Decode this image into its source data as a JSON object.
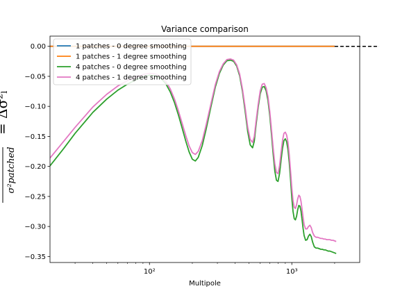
{
  "chart_data": {
    "type": "line",
    "title": "Variance comparison",
    "xlabel": "Multipole",
    "ylabel_numerator": "Δσ²",
    "ylabel_denominator": "σ²patched",
    "ylabel_equals": "= Δσ²ₗ",
    "xscale": "log",
    "xlim": [
      20,
      3000
    ],
    "ylim": [
      -0.36,
      0.017
    ],
    "x_ticks": [
      {
        "value": 100,
        "label": "10²"
      },
      {
        "value": 1000,
        "label": "10³"
      }
    ],
    "y_ticks": [
      0.0,
      -0.05,
      -0.1,
      -0.15,
      -0.2,
      -0.25,
      -0.3,
      -0.35
    ],
    "y_tick_labels": [
      "0.00",
      "−0.05",
      "−0.10",
      "−0.15",
      "−0.20",
      "−0.25",
      "−0.30",
      "−0.35"
    ],
    "legend_position": "upper-left",
    "reference_line": {
      "y": 0.0,
      "style": "dashed",
      "color": "#000000"
    },
    "series": [
      {
        "name": "1 patches - 0 degree smoothing",
        "color": "#1f77b4",
        "x": [
          20,
          50,
          100,
          200,
          500,
          1000,
          2000
        ],
        "y": [
          0.0,
          0.0,
          0.0,
          0.0,
          0.0,
          0.0,
          0.0
        ]
      },
      {
        "name": "1 patches - 1 degree smoothing",
        "color": "#ff7f0e",
        "x": [
          20,
          50,
          100,
          200,
          500,
          1000,
          2000
        ],
        "y": [
          0.0,
          0.0,
          0.0,
          0.0,
          0.0,
          0.0,
          0.0
        ]
      },
      {
        "name": "4 patches - 0 degree smoothing",
        "color": "#2ca02c",
        "x": [
          20,
          25,
          30,
          40,
          50,
          60,
          70,
          80,
          90,
          100,
          110,
          120,
          130,
          140,
          150,
          160,
          170,
          180,
          190,
          200,
          210,
          220,
          235,
          250,
          270,
          290,
          310,
          330,
          350,
          370,
          390,
          410,
          430,
          450,
          470,
          490,
          510,
          530,
          545,
          560,
          580,
          600,
          620,
          640,
          660,
          680,
          700,
          720,
          740,
          760,
          780,
          800,
          820,
          840,
          860,
          880,
          900,
          920,
          940,
          960,
          980,
          1000,
          1020,
          1040,
          1060,
          1080,
          1100,
          1120,
          1140,
          1160,
          1180,
          1200,
          1220,
          1250,
          1280,
          1310,
          1340,
          1370,
          1400,
          1440,
          1480,
          1520,
          1560,
          1600,
          1640,
          1680,
          1720,
          1760,
          1800,
          1850,
          1900,
          1950,
          2000,
          2050
        ],
        "y": [
          -0.199,
          -0.17,
          -0.145,
          -0.11,
          -0.088,
          -0.073,
          -0.063,
          -0.056,
          -0.051,
          -0.048,
          -0.049,
          -0.053,
          -0.062,
          -0.076,
          -0.094,
          -0.115,
          -0.137,
          -0.158,
          -0.176,
          -0.188,
          -0.191,
          -0.185,
          -0.165,
          -0.138,
          -0.101,
          -0.068,
          -0.045,
          -0.031,
          -0.024,
          -0.023,
          -0.025,
          -0.033,
          -0.049,
          -0.075,
          -0.108,
          -0.142,
          -0.164,
          -0.169,
          -0.158,
          -0.132,
          -0.102,
          -0.079,
          -0.068,
          -0.067,
          -0.074,
          -0.09,
          -0.115,
          -0.147,
          -0.18,
          -0.208,
          -0.223,
          -0.225,
          -0.212,
          -0.19,
          -0.17,
          -0.157,
          -0.154,
          -0.159,
          -0.172,
          -0.194,
          -0.222,
          -0.252,
          -0.275,
          -0.287,
          -0.289,
          -0.283,
          -0.272,
          -0.265,
          -0.266,
          -0.274,
          -0.288,
          -0.303,
          -0.315,
          -0.323,
          -0.322,
          -0.316,
          -0.313,
          -0.317,
          -0.326,
          -0.334,
          -0.336,
          -0.336,
          -0.337,
          -0.338,
          -0.338,
          -0.339,
          -0.339,
          -0.34,
          -0.341,
          -0.341,
          -0.342,
          -0.343,
          -0.344,
          -0.345
        ]
      },
      {
        "name": "4 patches - 1 degree smoothing",
        "color": "#e377c2",
        "x": [
          20,
          25,
          30,
          40,
          50,
          60,
          70,
          80,
          90,
          100,
          110,
          120,
          130,
          140,
          150,
          160,
          170,
          180,
          190,
          200,
          210,
          220,
          235,
          250,
          270,
          290,
          310,
          330,
          350,
          370,
          390,
          410,
          430,
          450,
          470,
          490,
          510,
          530,
          545,
          560,
          580,
          600,
          620,
          640,
          660,
          680,
          700,
          720,
          740,
          760,
          780,
          800,
          820,
          840,
          860,
          880,
          900,
          920,
          940,
          960,
          980,
          1000,
          1020,
          1040,
          1060,
          1080,
          1100,
          1120,
          1140,
          1160,
          1180,
          1200,
          1220,
          1250,
          1280,
          1310,
          1340,
          1370,
          1400,
          1440,
          1480,
          1520,
          1560,
          1600,
          1640,
          1680,
          1720,
          1760,
          1800,
          1850,
          1900,
          1950,
          2000,
          2050
        ],
        "y": [
          -0.186,
          -0.158,
          -0.135,
          -0.101,
          -0.08,
          -0.066,
          -0.057,
          -0.051,
          -0.047,
          -0.045,
          -0.046,
          -0.05,
          -0.058,
          -0.071,
          -0.088,
          -0.108,
          -0.129,
          -0.149,
          -0.166,
          -0.177,
          -0.18,
          -0.175,
          -0.157,
          -0.131,
          -0.096,
          -0.064,
          -0.042,
          -0.029,
          -0.022,
          -0.021,
          -0.023,
          -0.031,
          -0.046,
          -0.071,
          -0.102,
          -0.135,
          -0.155,
          -0.16,
          -0.15,
          -0.126,
          -0.097,
          -0.074,
          -0.063,
          -0.062,
          -0.069,
          -0.084,
          -0.108,
          -0.139,
          -0.17,
          -0.196,
          -0.21,
          -0.212,
          -0.199,
          -0.177,
          -0.157,
          -0.145,
          -0.143,
          -0.148,
          -0.16,
          -0.181,
          -0.208,
          -0.236,
          -0.257,
          -0.268,
          -0.27,
          -0.264,
          -0.254,
          -0.248,
          -0.25,
          -0.258,
          -0.271,
          -0.285,
          -0.297,
          -0.304,
          -0.304,
          -0.3,
          -0.298,
          -0.302,
          -0.31,
          -0.316,
          -0.318,
          -0.318,
          -0.319,
          -0.32,
          -0.32,
          -0.321,
          -0.321,
          -0.322,
          -0.322,
          -0.322,
          -0.323,
          -0.323,
          -0.324,
          -0.325
        ]
      }
    ]
  }
}
